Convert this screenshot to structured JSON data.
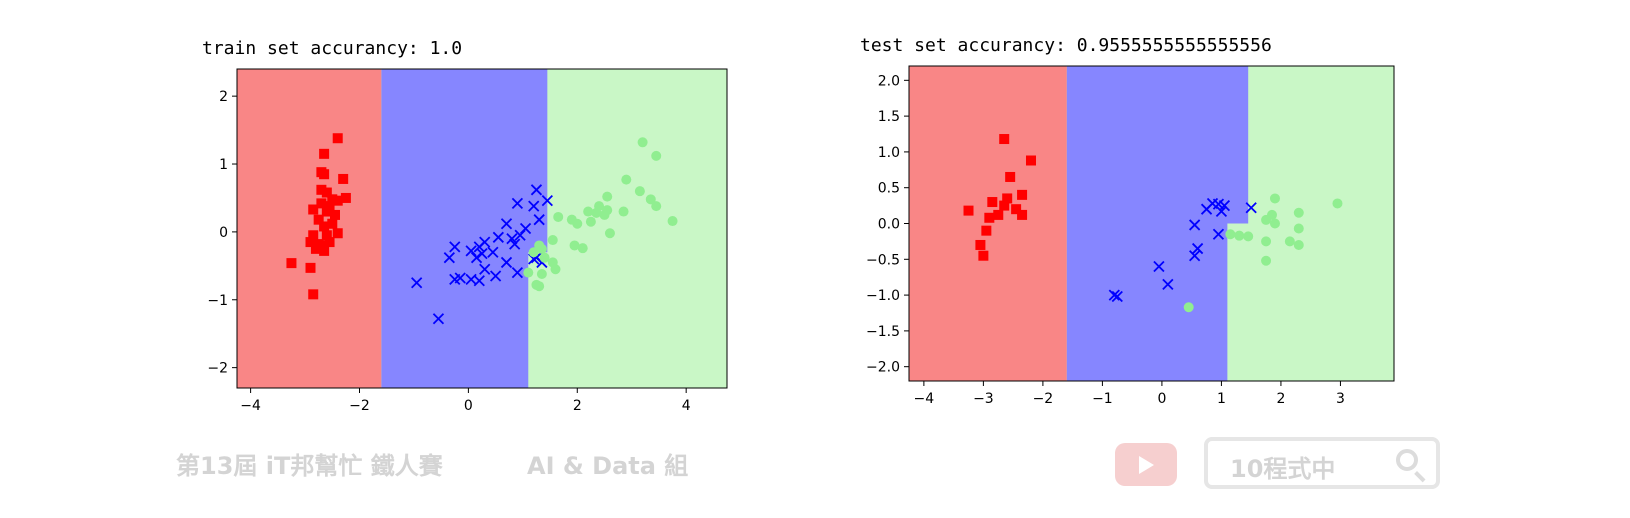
{
  "chart_data": [
    {
      "type": "scatter",
      "title": "train set accurancy:  1.0",
      "xlim": [
        -4.25,
        4.75
      ],
      "ylim": [
        -2.3,
        2.4
      ],
      "xticks": [
        -4,
        -2,
        0,
        2,
        4
      ],
      "yticks": [
        -2,
        -1,
        0,
        1,
        2
      ],
      "xtick_labels": [
        "−4",
        "−2",
        "0",
        "2",
        "4"
      ],
      "ytick_labels": [
        "−2",
        "−1",
        "0",
        "1",
        "2"
      ],
      "regions": [
        {
          "class": 0,
          "color": "#f98686",
          "x_range": [
            -4.25,
            -1.6
          ]
        },
        {
          "class": 1,
          "color": "#8686ff",
          "boundary_right": [
            [
              1.45,
              2.4
            ],
            [
              1.45,
              -0.3
            ],
            [
              1.1,
              -0.3
            ],
            [
              1.1,
              -2.3
            ]
          ]
        },
        {
          "class": 2,
          "color": "#c9f7c6"
        }
      ],
      "series": [
        {
          "marker": "square",
          "color": "#ff0000",
          "points": [
            [
              -2.4,
              1.38
            ],
            [
              -2.65,
              1.15
            ],
            [
              -2.7,
              0.88
            ],
            [
              -2.65,
              0.85
            ],
            [
              -2.3,
              0.78
            ],
            [
              -2.7,
              0.62
            ],
            [
              -2.6,
              0.58
            ],
            [
              -2.5,
              0.48
            ],
            [
              -2.4,
              0.46
            ],
            [
              -2.25,
              0.5
            ],
            [
              -2.7,
              0.42
            ],
            [
              -2.55,
              0.38
            ],
            [
              -2.85,
              0.33
            ],
            [
              -2.6,
              0.3
            ],
            [
              -2.45,
              0.25
            ],
            [
              -2.75,
              0.18
            ],
            [
              -2.5,
              0.12
            ],
            [
              -2.65,
              0.08
            ],
            [
              -2.85,
              -0.05
            ],
            [
              -2.6,
              -0.05
            ],
            [
              -2.4,
              -0.02
            ],
            [
              -2.9,
              -0.15
            ],
            [
              -2.75,
              -0.18
            ],
            [
              -2.55,
              -0.15
            ],
            [
              -2.8,
              -0.25
            ],
            [
              -2.65,
              -0.28
            ],
            [
              -2.7,
              -0.2
            ],
            [
              -3.25,
              -0.46
            ],
            [
              -2.9,
              -0.53
            ],
            [
              -2.85,
              -0.92
            ]
          ]
        },
        {
          "marker": "x",
          "color": "#0000ff",
          "points": [
            [
              1.25,
              0.62
            ],
            [
              0.9,
              0.42
            ],
            [
              1.45,
              0.46
            ],
            [
              1.2,
              0.38
            ],
            [
              1.3,
              0.18
            ],
            [
              0.7,
              0.12
            ],
            [
              1.05,
              0.05
            ],
            [
              0.95,
              -0.05
            ],
            [
              0.8,
              -0.1
            ],
            [
              0.55,
              -0.08
            ],
            [
              0.3,
              -0.15
            ],
            [
              0.2,
              -0.22
            ],
            [
              0.45,
              -0.3
            ],
            [
              0.85,
              -0.18
            ],
            [
              0.05,
              -0.28
            ],
            [
              0.25,
              -0.32
            ],
            [
              -0.25,
              -0.22
            ],
            [
              0.15,
              -0.38
            ],
            [
              -0.35,
              -0.38
            ],
            [
              0.7,
              -0.45
            ],
            [
              1.25,
              -0.38
            ],
            [
              1.35,
              -0.45
            ],
            [
              0.9,
              -0.6
            ],
            [
              0.3,
              -0.55
            ],
            [
              0.5,
              -0.65
            ],
            [
              -0.15,
              -0.68
            ],
            [
              -0.25,
              -0.7
            ],
            [
              0.05,
              -0.7
            ],
            [
              0.2,
              -0.72
            ],
            [
              -0.95,
              -0.75
            ],
            [
              -0.55,
              -1.28
            ],
            [
              1.2,
              -0.4
            ]
          ]
        },
        {
          "marker": "circle",
          "color": "#90ee90",
          "points": [
            [
              3.2,
              1.32
            ],
            [
              3.45,
              1.12
            ],
            [
              2.9,
              0.77
            ],
            [
              3.15,
              0.6
            ],
            [
              2.55,
              0.52
            ],
            [
              3.35,
              0.48
            ],
            [
              2.2,
              0.3
            ],
            [
              2.4,
              0.38
            ],
            [
              2.55,
              0.32
            ],
            [
              2.85,
              0.3
            ],
            [
              3.45,
              0.38
            ],
            [
              1.65,
              0.22
            ],
            [
              1.9,
              0.18
            ],
            [
              2.0,
              0.12
            ],
            [
              2.25,
              0.15
            ],
            [
              2.35,
              0.28
            ],
            [
              2.5,
              0.25
            ],
            [
              3.75,
              0.16
            ],
            [
              2.6,
              -0.02
            ],
            [
              1.55,
              -0.12
            ],
            [
              1.3,
              -0.2
            ],
            [
              1.35,
              -0.25
            ],
            [
              1.95,
              -0.2
            ],
            [
              2.1,
              -0.24
            ],
            [
              1.2,
              -0.3
            ],
            [
              1.4,
              -0.38
            ],
            [
              1.55,
              -0.45
            ],
            [
              1.1,
              -0.6
            ],
            [
              1.35,
              -0.62
            ],
            [
              1.6,
              -0.55
            ],
            [
              1.25,
              -0.78
            ],
            [
              1.3,
              -0.8
            ]
          ]
        }
      ]
    },
    {
      "type": "scatter",
      "title": "test set accurancy:  0.9555555555555556",
      "xlim": [
        -4.25,
        3.9
      ],
      "ylim": [
        -2.2,
        2.2
      ],
      "xticks": [
        -4,
        -3,
        -2,
        -1,
        0,
        1,
        2,
        3
      ],
      "yticks": [
        -2.0,
        -1.5,
        -1.0,
        -0.5,
        0.0,
        0.5,
        1.0,
        1.5,
        2.0
      ],
      "xtick_labels": [
        "−4",
        "−3",
        "−2",
        "−1",
        "0",
        "1",
        "2",
        "3"
      ],
      "ytick_labels": [
        "−2.0",
        "−1.5",
        "−1.0",
        "−0.5",
        "0.0",
        "0.5",
        "1.0",
        "1.5",
        "2.0"
      ],
      "regions": [
        {
          "class": 0,
          "color": "#f98686",
          "x_range": [
            -4.25,
            -1.6
          ]
        },
        {
          "class": 1,
          "color": "#8686ff",
          "boundary_right": [
            [
              1.45,
              2.2
            ],
            [
              1.45,
              0.0
            ],
            [
              1.1,
              0.0
            ],
            [
              1.1,
              -0.5
            ],
            [
              1.45,
              -0.5
            ],
            [
              1.45,
              -0.5
            ],
            [
              1.1,
              -0.5
            ],
            [
              1.1,
              -2.2
            ]
          ]
        },
        {
          "class": 2,
          "color": "#c9f7c6"
        }
      ],
      "series": [
        {
          "marker": "square",
          "color": "#ff0000",
          "points": [
            [
              -2.65,
              1.18
            ],
            [
              -2.2,
              0.88
            ],
            [
              -2.55,
              0.65
            ],
            [
              -2.35,
              0.4
            ],
            [
              -2.6,
              0.35
            ],
            [
              -2.85,
              0.3
            ],
            [
              -2.65,
              0.25
            ],
            [
              -2.45,
              0.2
            ],
            [
              -3.25,
              0.18
            ],
            [
              -2.75,
              0.12
            ],
            [
              -2.35,
              0.12
            ],
            [
              -2.9,
              0.08
            ],
            [
              -2.95,
              -0.1
            ],
            [
              -3.05,
              -0.3
            ],
            [
              -3.0,
              -0.45
            ]
          ]
        },
        {
          "marker": "x",
          "color": "#0000ff",
          "points": [
            [
              0.85,
              0.28
            ],
            [
              0.95,
              0.27
            ],
            [
              1.05,
              0.25
            ],
            [
              0.75,
              0.2
            ],
            [
              1.0,
              0.17
            ],
            [
              1.5,
              0.22
            ],
            [
              0.55,
              -0.02
            ],
            [
              0.95,
              -0.15
            ],
            [
              0.6,
              -0.35
            ],
            [
              0.55,
              -0.45
            ],
            [
              -0.05,
              -0.6
            ],
            [
              0.1,
              -0.85
            ],
            [
              -0.8,
              -1.0
            ],
            [
              -0.75,
              -1.02
            ]
          ]
        },
        {
          "marker": "circle",
          "color": "#90ee90",
          "points": [
            [
              1.9,
              0.35
            ],
            [
              2.95,
              0.28
            ],
            [
              2.3,
              0.15
            ],
            [
              1.85,
              0.12
            ],
            [
              1.75,
              0.05
            ],
            [
              1.9,
              0.0
            ],
            [
              2.3,
              -0.07
            ],
            [
              1.15,
              -0.15
            ],
            [
              1.3,
              -0.17
            ],
            [
              1.45,
              -0.18
            ],
            [
              1.75,
              -0.25
            ],
            [
              2.15,
              -0.25
            ],
            [
              2.3,
              -0.3
            ],
            [
              1.75,
              -0.52
            ],
            [
              0.45,
              -1.17
            ]
          ]
        }
      ]
    }
  ],
  "watermark": {
    "left_text": "第13屆 iT邦幫忙 鐵人賽",
    "mid_text": "AI & Data 組",
    "search_text": "10程式中",
    "play_icon": "youtube-play-icon",
    "search_icon": "search-icon"
  }
}
